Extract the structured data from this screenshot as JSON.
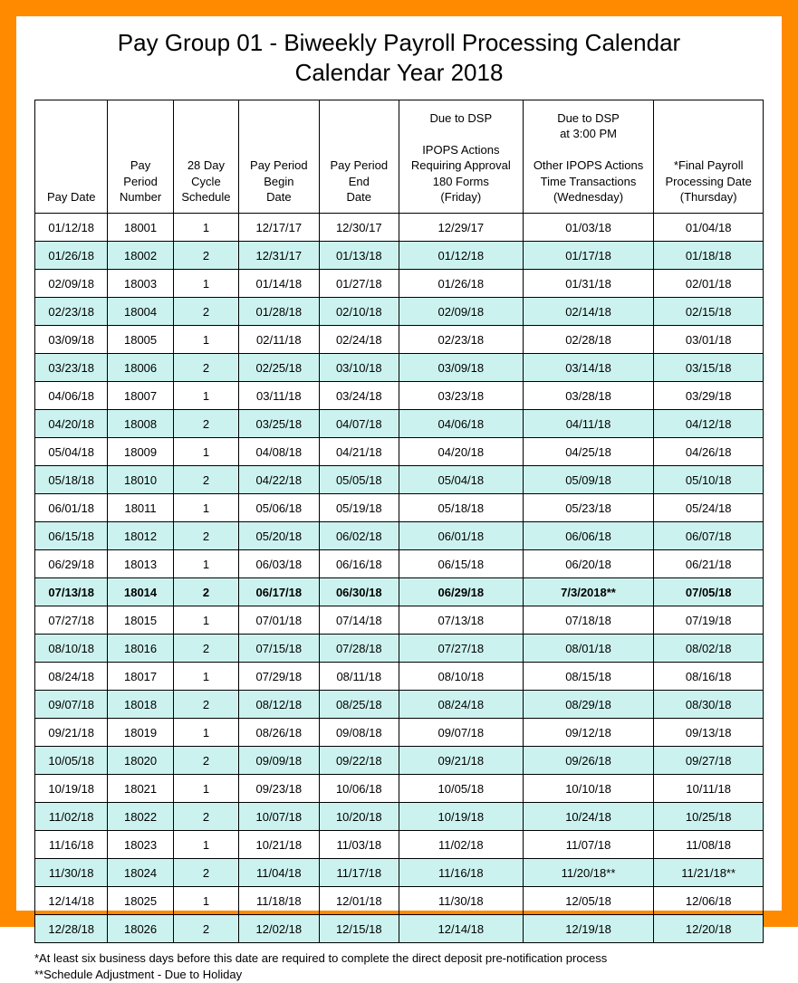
{
  "title": "Pay Group 01 - Biweekly Payroll Processing Calendar",
  "subtitle": "Calendar Year 2018",
  "colors": {
    "frame_border": "#ff8a00",
    "alt_row_bg": "#ccf2ef",
    "cell_border": "#000000",
    "text": "#000000",
    "background": "#ffffff"
  },
  "typography": {
    "title_fontsize": 26,
    "header_fontsize": 13,
    "cell_fontsize": 13,
    "footnote_fontsize": 13,
    "font_family": "Arial"
  },
  "table": {
    "col_widths_pct": [
      10,
      9,
      9,
      11,
      11,
      17,
      18,
      15
    ],
    "columns": [
      "Pay Date",
      "Pay\nPeriod\nNumber",
      "28 Day\nCycle\nSchedule",
      "Pay Period\nBegin\nDate",
      "Pay Period\nEnd\nDate",
      "Due to DSP\n\nIPOPS Actions\nRequiring Approval\n180 Forms\n(Friday)",
      "Due to DSP\nat 3:00 PM\n\nOther IPOPS Actions\nTime Transactions\n(Wednesday)",
      "*Final Payroll\nProcessing Date\n(Thursday)"
    ],
    "highlight_row_index": 13,
    "rows": [
      [
        "01/12/18",
        "18001",
        "1",
        "12/17/17",
        "12/30/17",
        "12/29/17",
        "01/03/18",
        "01/04/18"
      ],
      [
        "01/26/18",
        "18002",
        "2",
        "12/31/17",
        "01/13/18",
        "01/12/18",
        "01/17/18",
        "01/18/18"
      ],
      [
        "02/09/18",
        "18003",
        "1",
        "01/14/18",
        "01/27/18",
        "01/26/18",
        "01/31/18",
        "02/01/18"
      ],
      [
        "02/23/18",
        "18004",
        "2",
        "01/28/18",
        "02/10/18",
        "02/09/18",
        "02/14/18",
        "02/15/18"
      ],
      [
        "03/09/18",
        "18005",
        "1",
        "02/11/18",
        "02/24/18",
        "02/23/18",
        "02/28/18",
        "03/01/18"
      ],
      [
        "03/23/18",
        "18006",
        "2",
        "02/25/18",
        "03/10/18",
        "03/09/18",
        "03/14/18",
        "03/15/18"
      ],
      [
        "04/06/18",
        "18007",
        "1",
        "03/11/18",
        "03/24/18",
        "03/23/18",
        "03/28/18",
        "03/29/18"
      ],
      [
        "04/20/18",
        "18008",
        "2",
        "03/25/18",
        "04/07/18",
        "04/06/18",
        "04/11/18",
        "04/12/18"
      ],
      [
        "05/04/18",
        "18009",
        "1",
        "04/08/18",
        "04/21/18",
        "04/20/18",
        "04/25/18",
        "04/26/18"
      ],
      [
        "05/18/18",
        "18010",
        "2",
        "04/22/18",
        "05/05/18",
        "05/04/18",
        "05/09/18",
        "05/10/18"
      ],
      [
        "06/01/18",
        "18011",
        "1",
        "05/06/18",
        "05/19/18",
        "05/18/18",
        "05/23/18",
        "05/24/18"
      ],
      [
        "06/15/18",
        "18012",
        "2",
        "05/20/18",
        "06/02/18",
        "06/01/18",
        "06/06/18",
        "06/07/18"
      ],
      [
        "06/29/18",
        "18013",
        "1",
        "06/03/18",
        "06/16/18",
        "06/15/18",
        "06/20/18",
        "06/21/18"
      ],
      [
        "07/13/18",
        "18014",
        "2",
        "06/17/18",
        "06/30/18",
        "06/29/18",
        "7/3/2018**",
        "07/05/18"
      ],
      [
        "07/27/18",
        "18015",
        "1",
        "07/01/18",
        "07/14/18",
        "07/13/18",
        "07/18/18",
        "07/19/18"
      ],
      [
        "08/10/18",
        "18016",
        "2",
        "07/15/18",
        "07/28/18",
        "07/27/18",
        "08/01/18",
        "08/02/18"
      ],
      [
        "08/24/18",
        "18017",
        "1",
        "07/29/18",
        "08/11/18",
        "08/10/18",
        "08/15/18",
        "08/16/18"
      ],
      [
        "09/07/18",
        "18018",
        "2",
        "08/12/18",
        "08/25/18",
        "08/24/18",
        "08/29/18",
        "08/30/18"
      ],
      [
        "09/21/18",
        "18019",
        "1",
        "08/26/18",
        "09/08/18",
        "09/07/18",
        "09/12/18",
        "09/13/18"
      ],
      [
        "10/05/18",
        "18020",
        "2",
        "09/09/18",
        "09/22/18",
        "09/21/18",
        "09/26/18",
        "09/27/18"
      ],
      [
        "10/19/18",
        "18021",
        "1",
        "09/23/18",
        "10/06/18",
        "10/05/18",
        "10/10/18",
        "10/11/18"
      ],
      [
        "11/02/18",
        "18022",
        "2",
        "10/07/18",
        "10/20/18",
        "10/19/18",
        "10/24/18",
        "10/25/18"
      ],
      [
        "11/16/18",
        "18023",
        "1",
        "10/21/18",
        "11/03/18",
        "11/02/18",
        "11/07/18",
        "11/08/18"
      ],
      [
        "11/30/18",
        "18024",
        "2",
        "11/04/18",
        "11/17/18",
        "11/16/18",
        "11/20/18**",
        "11/21/18**"
      ],
      [
        "12/14/18",
        "18025",
        "1",
        "11/18/18",
        "12/01/18",
        "11/30/18",
        "12/05/18",
        "12/06/18"
      ],
      [
        "12/28/18",
        "18026",
        "2",
        "12/02/18",
        "12/15/18",
        "12/14/18",
        "12/19/18",
        "12/20/18"
      ]
    ]
  },
  "footnotes": [
    "*At least six business days before this date are required to complete the direct deposit pre-notification process",
    "**Schedule Adjustment - Due to Holiday"
  ]
}
